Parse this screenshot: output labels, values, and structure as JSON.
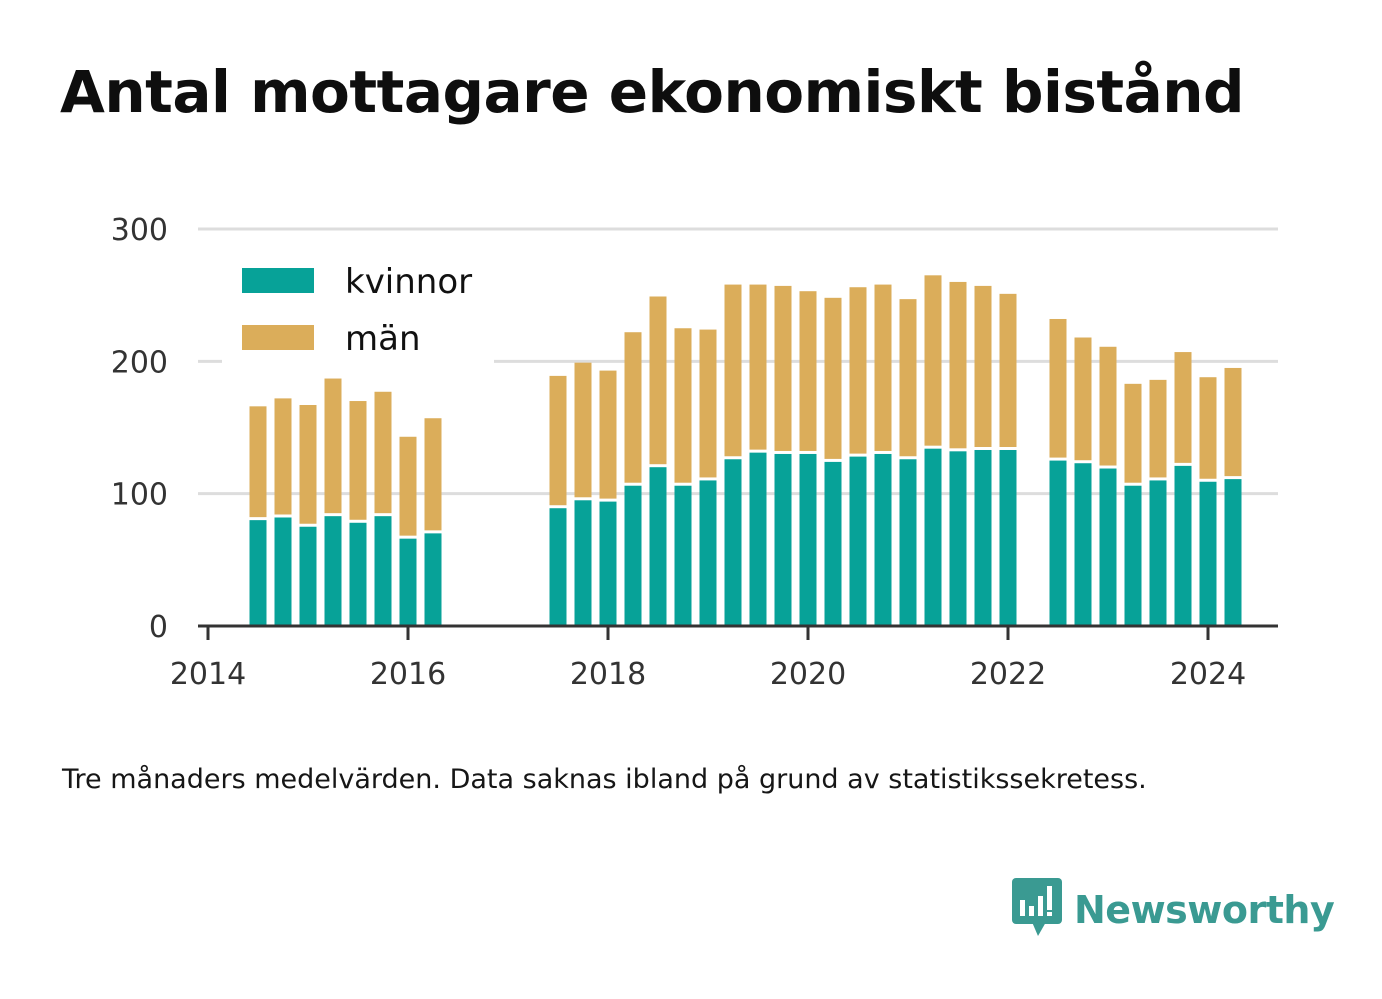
{
  "title": "Antal mottagare ekonomiskt bistånd",
  "caption": "Tre månaders medelvärden. Data saknas ibland på grund av statistikssekretess.",
  "brand": {
    "name": "Newsworthy",
    "icon": "newsworthy-logo-icon",
    "color": "#3a9a92"
  },
  "chart_data": {
    "type": "bar",
    "stacked": true,
    "x_unit": "year",
    "x_range": [
      2013.9,
      2024.7
    ],
    "ylim": [
      0,
      300
    ],
    "y_ticks": [
      0,
      100,
      200,
      300
    ],
    "x_ticks": [
      "2014",
      "2016",
      "2018",
      "2020",
      "2022",
      "2024"
    ],
    "grid": true,
    "legend_position": "top-left",
    "colors": {
      "kvinnor": "#07a298",
      "män": "#dbad5a"
    },
    "x": [
      2014.5,
      2014.75,
      2015.0,
      2015.25,
      2015.5,
      2015.75,
      2016.0,
      2016.25,
      2017.5,
      2017.75,
      2018.0,
      2018.25,
      2018.5,
      2018.75,
      2019.0,
      2019.25,
      2019.5,
      2019.75,
      2020.0,
      2020.25,
      2020.5,
      2020.75,
      2021.0,
      2021.25,
      2021.5,
      2021.75,
      2022.0,
      2022.5,
      2022.75,
      2023.0,
      2023.25,
      2023.5,
      2023.75,
      2024.0,
      2024.25
    ],
    "series": [
      {
        "name": "kvinnor",
        "values": [
          80,
          82,
          75,
          83,
          78,
          83,
          66,
          70,
          89,
          95,
          94,
          106,
          120,
          106,
          110,
          126,
          131,
          130,
          130,
          124,
          128,
          130,
          126,
          134,
          132,
          133,
          133,
          125,
          123,
          119,
          106,
          110,
          121,
          109,
          111
        ]
      },
      {
        "name": "män",
        "values": [
          86,
          90,
          92,
          104,
          92,
          94,
          77,
          87,
          100,
          104,
          99,
          116,
          129,
          119,
          114,
          132,
          127,
          127,
          123,
          124,
          128,
          128,
          121,
          131,
          128,
          124,
          118,
          107,
          95,
          92,
          77,
          76,
          86,
          79,
          84
        ]
      }
    ]
  }
}
